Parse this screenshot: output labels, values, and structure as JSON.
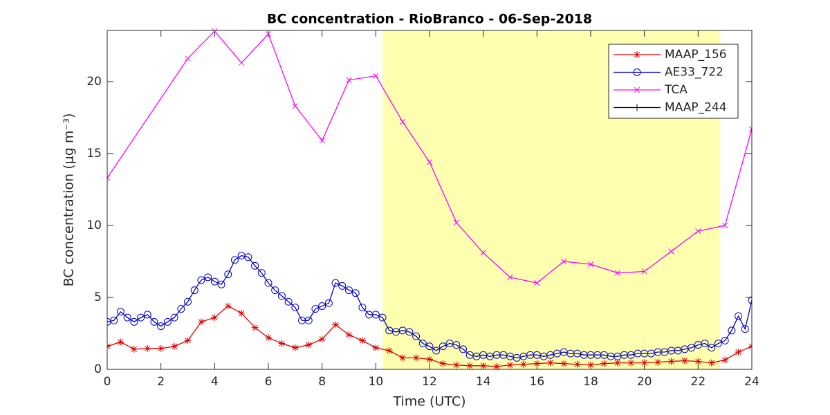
{
  "chart_data": {
    "type": "line",
    "title": "BC concentration  - RioBranco - 06-Sep-2018",
    "x_label": "Time (UTC)",
    "y_label": "BC concentration (μg m⁻³)",
    "xlim": [
      0,
      24
    ],
    "xticks": [
      0,
      2,
      4,
      6,
      8,
      10,
      12,
      14,
      16,
      18,
      20,
      22,
      24
    ],
    "ylim": [
      0,
      23.55
    ],
    "yticks": [
      0,
      5,
      10,
      15,
      20
    ],
    "shade": {
      "x": [
        10.25,
        22.82
      ],
      "color": "#ffffb0"
    },
    "legend": "upper right",
    "series": [
      {
        "name": "MAAP_156",
        "color": "#dd0000",
        "marker": "star",
        "x": [
          0,
          0.5,
          1,
          1.5,
          2,
          2.5,
          3,
          3.5,
          4,
          4.5,
          5,
          5.5,
          6,
          6.5,
          7,
          7.5,
          8,
          8.5,
          9,
          9.5,
          10,
          10.5,
          11,
          11.5,
          12,
          12.5,
          13,
          13.5,
          14,
          14.5,
          15,
          15.5,
          16,
          16.5,
          17,
          17.5,
          18,
          18.5,
          19,
          19.5,
          20,
          20.5,
          21,
          21.5,
          22,
          22.5,
          23,
          23.5,
          24
        ],
        "values": [
          1.6,
          1.9,
          1.4,
          1.45,
          1.45,
          1.6,
          2.0,
          3.3,
          3.6,
          4.4,
          3.9,
          2.9,
          2.2,
          1.8,
          1.5,
          1.7,
          2.1,
          3.1,
          2.4,
          2.0,
          1.5,
          1.3,
          0.8,
          0.8,
          0.7,
          0.4,
          0.3,
          0.25,
          0.25,
          0.2,
          0.3,
          0.35,
          0.4,
          0.45,
          0.4,
          0.35,
          0.3,
          0.4,
          0.45,
          0.45,
          0.45,
          0.5,
          0.55,
          0.6,
          0.55,
          0.45,
          0.65,
          1.2,
          1.6
        ]
      },
      {
        "name": "AE33_722",
        "color": "#0000c8",
        "marker": "circle",
        "x": [
          0,
          0.25,
          0.5,
          0.75,
          1,
          1.25,
          1.5,
          1.75,
          2,
          2.25,
          2.5,
          2.75,
          3,
          3.25,
          3.5,
          3.75,
          4,
          4.25,
          4.5,
          4.75,
          5,
          5.25,
          5.5,
          5.75,
          6,
          6.25,
          6.5,
          6.75,
          7,
          7.25,
          7.5,
          7.75,
          8,
          8.25,
          8.5,
          8.75,
          9,
          9.25,
          9.5,
          9.75,
          10,
          10.25,
          10.5,
          10.75,
          11,
          11.25,
          11.5,
          11.75,
          12,
          12.25,
          12.5,
          12.75,
          13,
          13.25,
          13.5,
          13.75,
          14,
          14.25,
          14.5,
          14.75,
          15,
          15.25,
          15.5,
          15.75,
          16,
          16.25,
          16.5,
          16.75,
          17,
          17.25,
          17.5,
          17.75,
          18,
          18.25,
          18.5,
          18.75,
          19,
          19.25,
          19.5,
          19.75,
          20,
          20.25,
          20.5,
          20.75,
          21,
          21.25,
          21.5,
          21.75,
          22,
          22.25,
          22.5,
          22.75,
          23,
          23.25,
          23.5,
          23.75,
          24
        ],
        "values": [
          3.3,
          3.4,
          4.0,
          3.6,
          3.3,
          3.6,
          3.8,
          3.3,
          3.0,
          3.3,
          3.6,
          4.2,
          4.7,
          5.5,
          6.2,
          6.4,
          6.1,
          5.9,
          6.6,
          7.6,
          7.9,
          7.8,
          7.2,
          6.7,
          6.0,
          5.5,
          5.1,
          4.7,
          4.3,
          3.4,
          3.4,
          4.2,
          4.4,
          4.6,
          6.0,
          5.8,
          5.5,
          5.3,
          4.3,
          3.8,
          3.8,
          3.6,
          2.7,
          2.6,
          2.7,
          2.6,
          2.3,
          1.8,
          1.6,
          1.3,
          1.6,
          1.8,
          1.7,
          1.4,
          1.0,
          0.9,
          1.0,
          0.9,
          1.0,
          1.0,
          0.9,
          0.8,
          0.9,
          1.0,
          1.0,
          0.9,
          1.0,
          1.1,
          1.2,
          1.1,
          1.1,
          1.0,
          1.0,
          1.0,
          1.0,
          0.9,
          0.9,
          1.0,
          1.0,
          1.1,
          1.1,
          1.1,
          1.2,
          1.2,
          1.3,
          1.3,
          1.4,
          1.5,
          1.7,
          1.8,
          1.5,
          1.8,
          2.0,
          2.7,
          3.7,
          2.8,
          4.8
        ]
      },
      {
        "name": "TCA",
        "color": "#ff00ff",
        "marker": "x",
        "x": [
          0,
          3,
          4,
          5,
          6,
          7,
          8,
          9,
          10,
          11,
          12,
          13,
          14,
          15,
          16,
          17,
          18,
          19,
          20,
          21,
          22,
          23,
          24
        ],
        "values": [
          13.3,
          21.6,
          23.5,
          21.3,
          23.3,
          18.3,
          15.9,
          20.1,
          20.4,
          17.2,
          14.4,
          10.2,
          8.1,
          6.4,
          6.0,
          7.5,
          7.3,
          6.7,
          6.8,
          8.2,
          9.6,
          10.0,
          16.7
        ]
      },
      {
        "name": "MAAP_244",
        "color": "#000000",
        "marker": "plus",
        "x": [],
        "values": []
      }
    ]
  }
}
